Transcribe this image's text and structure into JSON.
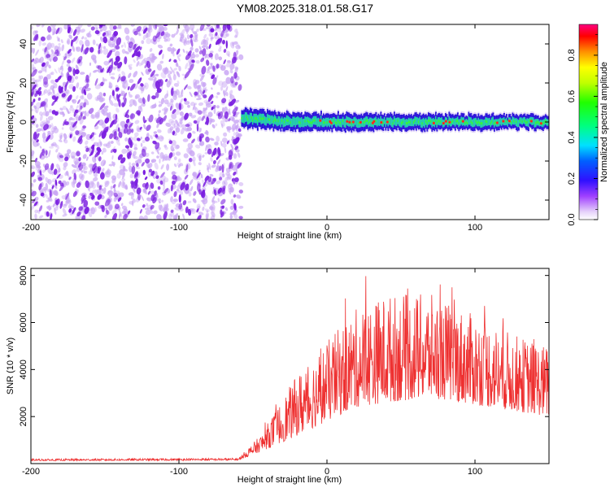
{
  "title": "YM08.2025.318.01.58.G17",
  "chart_data": [
    {
      "type": "heatmap",
      "name": "spectrogram",
      "xlabel": "Height of straight line (km)",
      "ylabel": "Frequency (Hz)",
      "xlim": [
        -200,
        150
      ],
      "ylim": [
        -50,
        50
      ],
      "xticks": [
        -200,
        -100,
        0,
        100
      ],
      "yticks": [
        -40,
        -20,
        0,
        20,
        40
      ],
      "noise_region_x": [
        -200,
        -58
      ],
      "signal_band_x": [
        -58,
        150
      ],
      "signal_band_center_hz": 0,
      "colorbar": {
        "label": "Normalized spectral amplitude",
        "range": [
          0,
          0.95
        ],
        "ticks": [
          "0.0",
          "0.2",
          "0.4",
          "0.6",
          "0.8"
        ]
      },
      "colors": {
        "noise": "#7b1fe0",
        "noise_light": "#c9a6f4",
        "band_low": "#2a13d8",
        "band_mid": "#21d6a8",
        "band_high": "#33ff33",
        "peak": "#ff2a1a"
      }
    },
    {
      "type": "line",
      "name": "snr",
      "xlabel": "Height of straight line (km)",
      "ylabel": "SNR (10 * v/v)",
      "xlim": [
        -200,
        150
      ],
      "ylim": [
        0,
        8300
      ],
      "xticks": [
        -200,
        -100,
        0,
        100
      ],
      "yticks": [
        2000,
        4000,
        6000,
        8000
      ],
      "color": "#ee3030",
      "envelope": [
        {
          "x": -200,
          "base": 120,
          "spread": 80
        },
        {
          "x": -60,
          "base": 140,
          "spread": 90
        },
        {
          "x": -45,
          "base": 500,
          "spread": 700
        },
        {
          "x": -20,
          "base": 1200,
          "spread": 2600
        },
        {
          "x": 0,
          "base": 1800,
          "spread": 3400
        },
        {
          "x": 20,
          "base": 2400,
          "spread": 4200
        },
        {
          "x": 40,
          "base": 2600,
          "spread": 4600
        },
        {
          "x": 70,
          "base": 2800,
          "spread": 4400
        },
        {
          "x": 100,
          "base": 2500,
          "spread": 3800
        },
        {
          "x": 130,
          "base": 2200,
          "spread": 3200
        },
        {
          "x": 150,
          "base": 2000,
          "spread": 3000
        }
      ]
    }
  ]
}
